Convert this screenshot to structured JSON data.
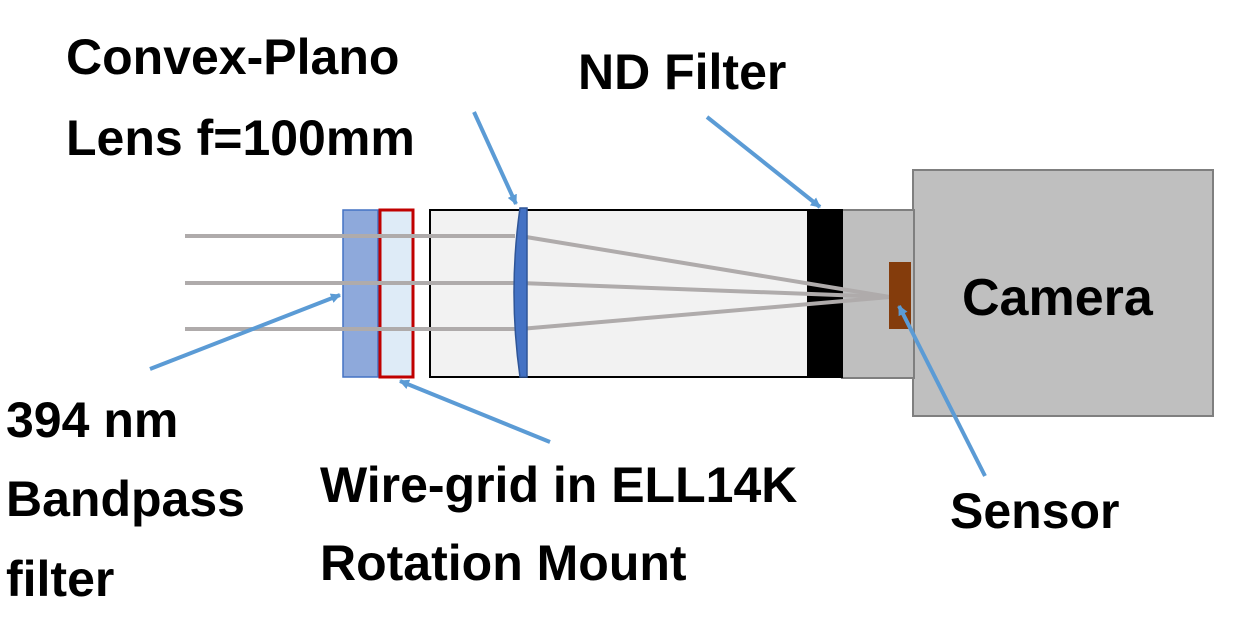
{
  "colors": {
    "bandpass_fill": "#8EA9DB",
    "wiregrid_fill": "#DEEBF7",
    "wiregrid_border": "#C00000",
    "lens_fill": "#4472C4",
    "tube_fill": "#F2F2F2",
    "nd_filter_fill": "#000000",
    "camera_fill": "#BFBFBF",
    "camera_border": "#7F7F7F",
    "sensor_fill": "#843C0C",
    "ray_color": "#AFABAB",
    "arrow_color": "#5B9BD5"
  },
  "labels": {
    "lens_line1": "Convex-Plano",
    "lens_line2": "Lens f=100mm",
    "nd_filter": "ND Filter",
    "camera": "Camera",
    "bandpass_line1": "394 nm",
    "bandpass_line2": "Bandpass",
    "bandpass_line3": "filter",
    "wiregrid_line1": "Wire-grid in ELL14K",
    "wiregrid_line2": "Rotation Mount",
    "sensor": "Sensor"
  }
}
